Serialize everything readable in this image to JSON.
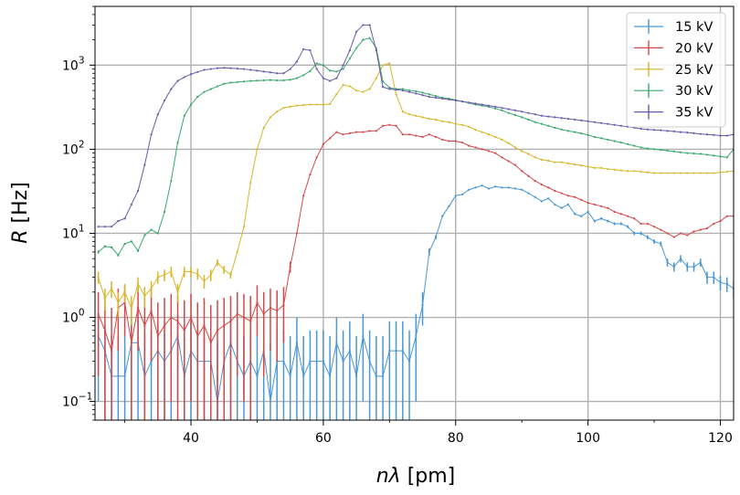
{
  "chart_data": {
    "type": "line",
    "xlabel": "nλ [pm]",
    "ylabel": "R [Hz]",
    "ylabel_var": "R",
    "ylabel_unit": " [Hz]",
    "xlabel_var": "nλ",
    "xlabel_unit": " [pm]",
    "xlim": [
      25.5,
      122
    ],
    "ylim": [
      0.06,
      5000
    ],
    "yscale": "log",
    "x_ticks": [
      40,
      60,
      80,
      100,
      120
    ],
    "y_ticks": [
      {
        "value": 0.1,
        "base": "10",
        "exp": "−1"
      },
      {
        "value": 1,
        "base": "10",
        "exp": "0"
      },
      {
        "value": 10,
        "base": "10",
        "exp": "1"
      },
      {
        "value": 100,
        "base": "10",
        "exp": "2"
      },
      {
        "value": 1000,
        "base": "10",
        "exp": "3"
      }
    ],
    "grid": true,
    "legend_position": "top-right",
    "x": [
      26,
      27,
      28,
      29,
      30,
      31,
      32,
      33,
      34,
      35,
      36,
      37,
      38,
      39,
      40,
      41,
      42,
      43,
      44,
      45,
      46,
      47,
      48,
      49,
      50,
      51,
      52,
      53,
      54,
      55,
      56,
      57,
      58,
      59,
      60,
      61,
      62,
      63,
      64,
      65,
      66,
      67,
      68,
      69,
      70,
      71,
      72,
      73,
      74,
      75,
      76,
      77,
      78,
      79,
      80,
      81,
      82,
      83,
      84,
      85,
      86,
      87,
      88,
      89,
      90,
      91,
      92,
      93,
      94,
      95,
      96,
      97,
      98,
      99,
      100,
      101,
      102,
      103,
      104,
      105,
      106,
      107,
      108,
      109,
      110,
      111,
      112,
      113,
      114,
      115,
      116,
      117,
      118,
      119,
      120,
      121,
      122
    ],
    "series": [
      {
        "name": "15 kV",
        "color": "#4a97d4",
        "values": [
          0.6,
          0.4,
          0.2,
          0.2,
          0.2,
          0.5,
          0.5,
          0.2,
          0.3,
          0.4,
          0.3,
          0.4,
          0.6,
          0.2,
          0.4,
          0.3,
          0.3,
          0.3,
          0.1,
          0.3,
          0.5,
          0.3,
          0.2,
          0.3,
          0.2,
          0.4,
          0.1,
          0.3,
          0.3,
          0.2,
          0.5,
          0.2,
          0.3,
          0.3,
          0.3,
          0.2,
          0.5,
          0.3,
          0.4,
          0.2,
          0.6,
          0.3,
          0.2,
          0.2,
          0.4,
          0.4,
          0.4,
          0.3,
          0.6,
          1.4,
          6,
          9,
          16,
          21,
          28,
          29,
          33,
          35,
          37,
          34,
          36,
          35,
          35,
          34,
          33,
          30,
          27,
          24,
          26,
          22,
          20,
          22,
          17,
          16,
          18,
          14,
          15,
          14,
          13,
          13,
          12,
          10,
          10,
          9,
          8,
          7.5,
          4.5,
          4,
          5,
          4,
          4,
          4.5,
          3,
          3,
          2.6,
          2.5,
          2.2
        ],
        "errors": [
          0.5,
          0.4,
          0.4,
          0.4,
          0.4,
          0.5,
          0.5,
          0.4,
          0.4,
          0.5,
          0.4,
          0.5,
          0.5,
          0.4,
          0.5,
          0.4,
          0.4,
          0.4,
          0.4,
          0.4,
          0.5,
          0.4,
          0.4,
          0.4,
          0.4,
          0.5,
          0.4,
          0.4,
          0.4,
          0.4,
          0.5,
          0.4,
          0.4,
          0.4,
          0.4,
          0.4,
          0.5,
          0.4,
          0.5,
          0.4,
          0.5,
          0.4,
          0.4,
          0.4,
          0.5,
          0.5,
          0.5,
          0.4,
          0.5,
          0.6,
          0.6,
          0.5,
          0.5,
          0.5,
          0.5,
          0.5,
          0.5,
          0.5,
          0.5,
          0.5,
          0.5,
          0.5,
          0.5,
          0.5,
          0.5,
          0.5,
          0.5,
          0.5,
          0.5,
          0.5,
          0.5,
          0.5,
          0.5,
          0.5,
          0.5,
          0.5,
          0.5,
          0.5,
          0.5,
          0.5,
          0.5,
          0.5,
          0.5,
          0.5,
          0.5,
          0.5,
          0.5,
          0.5,
          0.5,
          0.5,
          0.5,
          0.5,
          0.5,
          0.5,
          0.5,
          0.5,
          0.5
        ]
      },
      {
        "name": "20 kV",
        "color": "#d44848",
        "values": [
          1.1,
          0.7,
          0.4,
          1.3,
          1.5,
          0.5,
          1.3,
          0.8,
          1.2,
          0.6,
          0.8,
          1,
          0.9,
          0.7,
          1,
          0.6,
          0.8,
          0.5,
          0.7,
          0.8,
          0.9,
          1.1,
          1,
          0.9,
          1.5,
          1.1,
          1.3,
          1.2,
          1.4,
          4,
          10,
          28,
          50,
          80,
          115,
          135,
          160,
          150,
          155,
          160,
          160,
          165,
          165,
          190,
          195,
          190,
          150,
          150,
          145,
          140,
          150,
          140,
          130,
          125,
          125,
          120,
          110,
          105,
          100,
          95,
          90,
          80,
          72,
          65,
          55,
          48,
          42,
          38,
          35,
          32,
          30,
          28,
          27,
          25,
          23,
          22,
          21,
          20,
          18,
          17,
          16,
          15,
          13,
          13,
          12,
          11,
          10,
          9,
          10,
          9.5,
          10.5,
          11,
          11.5,
          13,
          14,
          16,
          16
        ],
        "errors": [
          0.9,
          0.9,
          0.9,
          0.9,
          0.9,
          0.9,
          0.9,
          0.9,
          0.9,
          0.9,
          0.9,
          0.9,
          0.9,
          0.9,
          0.9,
          0.9,
          0.9,
          0.9,
          0.9,
          0.9,
          0.9,
          0.9,
          0.9,
          0.9,
          0.9,
          0.9,
          0.9,
          0.9,
          0.9,
          0.6,
          0.15,
          0.1,
          0.05,
          0.05,
          0.05,
          0.05,
          0.05,
          0.05,
          0.05,
          0.05,
          0.05,
          0.05,
          0.05,
          0.05,
          0.05,
          0.05,
          0.05,
          0.05,
          0.05,
          0.05,
          0.05,
          0.05,
          0.05,
          0.05,
          0.05,
          0.05,
          0.05,
          0.05,
          0.05,
          0.05,
          0.05,
          0.05,
          0.05,
          0.05,
          0.05,
          0.05,
          0.05,
          0.05,
          0.05,
          0.05,
          0.05,
          0.05,
          0.05,
          0.05,
          0.05,
          0.05,
          0.05,
          0.05,
          0.05,
          0.05,
          0.05,
          0.05,
          0.05,
          0.05,
          0.05,
          0.05,
          0.05,
          0.08,
          0.05,
          0.05,
          0.05,
          0.05,
          0.05,
          0.05,
          0.05,
          0.05,
          0.05
        ]
      },
      {
        "name": "25 kV",
        "color": "#d8b62a",
        "values": [
          3,
          1.7,
          2.2,
          1.5,
          2,
          1.3,
          2.5,
          1.8,
          2.2,
          3,
          3.2,
          3.5,
          2,
          3.5,
          3.5,
          3.3,
          2.7,
          3.2,
          4.5,
          3.7,
          3.2,
          6,
          12,
          40,
          100,
          180,
          240,
          280,
          310,
          320,
          330,
          335,
          340,
          340,
          340,
          345,
          450,
          580,
          560,
          500,
          480,
          520,
          700,
          1000,
          1050,
          450,
          280,
          260,
          250,
          240,
          230,
          225,
          215,
          210,
          200,
          195,
          185,
          170,
          160,
          150,
          140,
          130,
          118,
          105,
          95,
          88,
          80,
          75,
          73,
          70,
          70,
          68,
          66,
          64,
          62,
          60,
          60,
          58,
          57,
          56,
          55,
          55,
          54,
          53,
          52,
          52,
          52,
          52,
          52,
          52,
          52,
          52,
          52,
          52,
          53,
          54,
          55
        ],
        "errors": [
          0.5,
          0.5,
          0.5,
          0.5,
          0.5,
          0.5,
          0.5,
          0.5,
          0.5,
          0.5,
          0.5,
          0.5,
          0.5,
          0.5,
          0.5,
          0.5,
          0.5,
          0.5,
          0.4,
          0.4,
          0.3,
          0.2,
          0.1,
          0.05,
          0.05,
          0.05,
          0.05,
          0.05,
          0.05,
          0.05,
          0.05,
          0.05,
          0.05,
          0.05,
          0.05,
          0.05,
          0.05,
          0.05,
          0.05,
          0.05,
          0.05,
          0.05,
          0.05,
          0.05,
          0.05,
          0.05,
          0.05,
          0.05,
          0.05,
          0.05,
          0.05,
          0.05,
          0.05,
          0.05,
          0.05,
          0.05,
          0.05,
          0.05,
          0.05,
          0.05,
          0.05,
          0.05,
          0.05,
          0.05,
          0.05,
          0.05,
          0.05,
          0.05,
          0.05,
          0.05,
          0.05,
          0.05,
          0.05,
          0.05,
          0.05,
          0.05,
          0.05,
          0.05,
          0.05,
          0.05,
          0.05,
          0.05,
          0.05,
          0.05,
          0.05,
          0.05,
          0.05,
          0.05,
          0.05,
          0.05,
          0.05,
          0.05,
          0.05,
          0.05,
          0.05,
          0.05,
          0.05
        ]
      },
      {
        "name": "30 kV",
        "color": "#3aa86c",
        "values": [
          6,
          7,
          6.8,
          5.5,
          7.5,
          8,
          6.2,
          9.5,
          11,
          10,
          18,
          42,
          120,
          250,
          340,
          420,
          480,
          520,
          560,
          600,
          620,
          630,
          640,
          650,
          655,
          660,
          665,
          660,
          660,
          670,
          700,
          760,
          850,
          1050,
          1000,
          860,
          840,
          900,
          1200,
          1600,
          2000,
          2100,
          1600,
          640,
          540,
          520,
          520,
          500,
          490,
          470,
          450,
          430,
          410,
          400,
          385,
          370,
          355,
          340,
          330,
          320,
          305,
          290,
          270,
          255,
          240,
          225,
          210,
          200,
          190,
          180,
          172,
          165,
          160,
          154,
          148,
          140,
          135,
          130,
          125,
          120,
          115,
          110,
          105,
          102,
          100,
          98,
          96,
          94,
          92,
          90,
          89,
          88,
          86,
          84,
          82,
          80,
          100
        ],
        "errors": [
          0.25,
          0.2,
          0.2,
          0.2,
          0.2,
          0.2,
          0.2,
          0.15,
          0.1,
          0.1,
          0.08,
          0.05,
          0.05,
          0.05,
          0.05,
          0.05,
          0.05,
          0.05,
          0.05,
          0.05,
          0.05,
          0.05,
          0.05,
          0.05,
          0.05,
          0.05,
          0.05,
          0.05,
          0.05,
          0.05,
          0.05,
          0.05,
          0.05,
          0.05,
          0.05,
          0.05,
          0.05,
          0.05,
          0.05,
          0.05,
          0.05,
          0.05,
          0.05,
          0.05,
          0.05,
          0.05,
          0.05,
          0.05,
          0.05,
          0.05,
          0.05,
          0.05,
          0.05,
          0.05,
          0.05,
          0.05,
          0.05,
          0.05,
          0.05,
          0.05,
          0.05,
          0.05,
          0.05,
          0.05,
          0.05,
          0.05,
          0.05,
          0.05,
          0.05,
          0.05,
          0.05,
          0.05,
          0.05,
          0.05,
          0.05,
          0.05,
          0.05,
          0.05,
          0.05,
          0.05,
          0.05,
          0.05,
          0.05,
          0.05,
          0.05,
          0.05,
          0.05,
          0.05,
          0.05,
          0.05,
          0.05,
          0.05,
          0.05,
          0.05,
          0.05,
          0.05,
          0.05
        ]
      },
      {
        "name": "35 kV",
        "color": "#6b5aaa",
        "values": [
          12,
          12,
          12,
          14,
          15,
          22,
          32,
          65,
          150,
          260,
          380,
          520,
          650,
          720,
          780,
          830,
          880,
          900,
          920,
          930,
          920,
          910,
          900,
          880,
          860,
          840,
          820,
          800,
          800,
          900,
          1100,
          1550,
          1500,
          900,
          700,
          650,
          700,
          1000,
          1500,
          2500,
          3000,
          3000,
          1500,
          550,
          520,
          510,
          500,
          480,
          460,
          440,
          420,
          410,
          400,
          390,
          380,
          370,
          360,
          350,
          340,
          330,
          320,
          310,
          300,
          290,
          280,
          270,
          260,
          250,
          245,
          240,
          235,
          230,
          225,
          220,
          215,
          210,
          205,
          200,
          195,
          190,
          185,
          180,
          175,
          172,
          170,
          168,
          165,
          163,
          160,
          158,
          155,
          152,
          150,
          148,
          145,
          145,
          150
        ],
        "errors": [
          0.15,
          0.12,
          0.1,
          0.1,
          0.1,
          0.08,
          0.05,
          0.05,
          0.05,
          0.05,
          0.05,
          0.05,
          0.05,
          0.05,
          0.05,
          0.05,
          0.05,
          0.05,
          0.05,
          0.05,
          0.05,
          0.05,
          0.05,
          0.05,
          0.05,
          0.05,
          0.05,
          0.05,
          0.05,
          0.05,
          0.05,
          0.05,
          0.05,
          0.05,
          0.05,
          0.05,
          0.05,
          0.05,
          0.05,
          0.05,
          0.05,
          0.05,
          0.05,
          0.05,
          0.05,
          0.05,
          0.05,
          0.05,
          0.05,
          0.05,
          0.05,
          0.05,
          0.05,
          0.05,
          0.05,
          0.05,
          0.05,
          0.05,
          0.05,
          0.05,
          0.05,
          0.05,
          0.05,
          0.05,
          0.05,
          0.05,
          0.05,
          0.05,
          0.05,
          0.05,
          0.05,
          0.05,
          0.05,
          0.05,
          0.05,
          0.05,
          0.05,
          0.05,
          0.05,
          0.05,
          0.05,
          0.05,
          0.05,
          0.05,
          0.05,
          0.05,
          0.05,
          0.05,
          0.05,
          0.05,
          0.05,
          0.05,
          0.05,
          0.05,
          0.05,
          0.05,
          0.05
        ]
      }
    ]
  }
}
